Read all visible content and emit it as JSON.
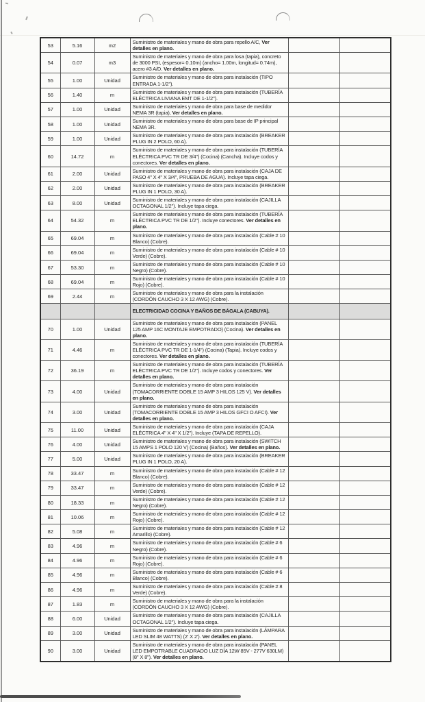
{
  "colors": {
    "page_background": "#fbfbf9",
    "table_border": "#565656",
    "section_fill": "#dcdcdb",
    "text": "#262626"
  },
  "table": {
    "rows": [
      {
        "item": "53",
        "qty": "5.16",
        "unit": "m2",
        "desc": "Suministro de materiales y mano de obra para repello A/C, ",
        "bold": "Ver detalles en plano."
      },
      {
        "item": "54",
        "qty": "0.07",
        "unit": "m3",
        "desc": "Suministro de materiales y mano de obra para losa (tapia), concreto de 3000 PSI, (espesor= 0.10m) (ancho= 1.00m, longitud= 0.74m), acero #3 A/D. ",
        "bold": "Ver detalles en plano."
      },
      {
        "item": "55",
        "qty": "1.00",
        "unit": "Unidad",
        "desc": "Suministro de materiales y mano de obra para instalación (TIPO ENTRADA 1-1/2\").",
        "bold": ""
      },
      {
        "item": "56",
        "qty": "1.40",
        "unit": "m",
        "desc": "Suministro de materiales y mano de obra para instalación (TUBERÍA ELÉCTRICA LIVIANA EMT DE 1-1/2\").",
        "bold": ""
      },
      {
        "item": "57",
        "qty": "1.00",
        "unit": "Unidad",
        "desc": "Suministro de materiales y mano de obra para base de medidor NEMA 3R (tapia), ",
        "bold": "Ver detalles en plano."
      },
      {
        "item": "58",
        "qty": "1.00",
        "unit": "Unidad",
        "desc": "Suministro de materiales y mano de obra para base de IP principal NEMA 3R.",
        "bold": ""
      },
      {
        "item": "59",
        "qty": "1.00",
        "unit": "Unidad",
        "desc": "Suministro de materiales y mano de obra para instalación (BREAKER PLUG IN 2 POLO, 60 A).",
        "bold": ""
      },
      {
        "item": "60",
        "qty": "14.72",
        "unit": "m",
        "desc": "Suministro de materiales y mano de obra para instalación (TUBERÍA ELÉCTRICA PVC TR DE 3/4\") (Cocina) (Cancha). Incluye codos y conectores. ",
        "bold": "Ver detalles en plano."
      },
      {
        "item": "61",
        "qty": "2.00",
        "unit": "Unidad",
        "desc": "Suministro de materiales y mano de obra para instalación (CAJA DE PASO 4\" X 4\" X 3/4\", PRUEBA DE AGUA). Incluye tapa ciega.",
        "bold": ""
      },
      {
        "item": "62",
        "qty": "2.00",
        "unit": "Unidad",
        "desc": "Suministro de materiales y mano de obra para instalación (BREAKER PLUG IN 1 POLO, 30 A).",
        "bold": ""
      },
      {
        "item": "63",
        "qty": "8.00",
        "unit": "Unidad",
        "desc": "Suministro de materiales y mano de obra para instalación (CAJILLA OCTAGONAL 1/2\"). Incluye tapa ciega.",
        "bold": ""
      },
      {
        "item": "64",
        "qty": "54.32",
        "unit": "m",
        "desc": "Suministro de materiales y mano de obra para instalación (TUBERÍA ELÉCTRICA PVC TR DE 1/2\"). Incluye conectores. ",
        "bold": "Ver detalles en plano."
      },
      {
        "item": "65",
        "qty": "69.04",
        "unit": "m",
        "desc": "Suministro de materiales y mano de obra para instalación (Cable # 10 Blanco) (Cobre).",
        "bold": ""
      },
      {
        "item": "66",
        "qty": "69.04",
        "unit": "m",
        "desc": "Suministro de materiales y mano de obra para instalación (Cable # 10 Verde) (Cobre).",
        "bold": ""
      },
      {
        "item": "67",
        "qty": "53.30",
        "unit": "m",
        "desc": "Suministro de materiales y mano de obra para instalación (Cable # 10 Negro) (Cobre).",
        "bold": ""
      },
      {
        "item": "68",
        "qty": "69.04",
        "unit": "m",
        "desc": "Suministro de materiales y mano de obra para instalación (Cable # 10 Rojo) (Cobre).",
        "bold": ""
      },
      {
        "item": "69",
        "qty": "2.44",
        "unit": "m",
        "desc": "Suministro de materiales y mano de obra para la instalación (CORDÓN CAUCHO 3 X 12 AWG) (Cobre).",
        "bold": ""
      },
      {
        "section": "ELECTRICIDAD COCINA Y BAÑOS DE BÁGALA (CABUYA)."
      },
      {
        "item": "70",
        "qty": "1.00",
        "unit": "Unidad",
        "desc": "Suministro de materiales y mano de obra para instalación (PANEL 125 AMP 16C MONTAJE EMPOTRADO) (Cocina). ",
        "bold": "Ver detalles en plano."
      },
      {
        "item": "71",
        "qty": "4.46",
        "unit": "m",
        "desc": "Suministro de materiales y mano de obra para instalación (TUBERÍA ELÉCTRICA PVC TR DE 1-1/4\") (Cocina) (Tapia). Incluye codos y conectores. ",
        "bold": "Ver detalles en plano."
      },
      {
        "item": "72",
        "qty": "36.19",
        "unit": "m",
        "desc": "Suministro de materiales y mano de obra para instalación (TUBERÍA ELÉCTRICA PVC TR DE 1/2\"). Incluye codos y conectores. ",
        "bold": "Ver detalles en plano."
      },
      {
        "item": "73",
        "qty": "4.00",
        "unit": "Unidad",
        "desc": "Suministro de materiales y mano de obra para instalación (TOMACORRIENTE DOBLE 15 AMP 3 HILOS 125 V). ",
        "bold": "Ver detalles en plano."
      },
      {
        "item": "74",
        "qty": "3.00",
        "unit": "Unidad",
        "desc": "Suministro de materiales y mano de obra para instalación (TOMACORRIENTE DOBLE 15 AMP 3 HILOS GFCI O AFCI). ",
        "bold": "Ver detalles en plano."
      },
      {
        "item": "75",
        "qty": "11.00",
        "unit": "Unidad",
        "desc": "Suministro de materiales y mano de obra para instalación (CAJA ELÉCTRICA 4\" X 4\" X 1/2\"). Incluye (TAPA DE REPELLO).",
        "bold": ""
      },
      {
        "item": "76",
        "qty": "4.00",
        "unit": "Unidad",
        "desc": "Suministro de materiales y mano de obra para instalación (SWITCH 15 AMPS 1 POLO 120 V) (Cocina) (Baños). ",
        "bold": "Ver detalles en plano."
      },
      {
        "item": "77",
        "qty": "5.00",
        "unit": "Unidad",
        "desc": "Suministro de materiales y mano de obra para instalación (BREAKER PLUG IN 1 POLO, 20 A).",
        "bold": ""
      },
      {
        "item": "78",
        "qty": "33.47",
        "unit": "m",
        "desc": "Suministro de materiales y mano de obra para instalación (Cable # 12 Blanco) (Cobre).",
        "bold": ""
      },
      {
        "item": "79",
        "qty": "33.47",
        "unit": "m",
        "desc": "Suministro de materiales y mano de obra para instalación (Cable # 12 Verde) (Cobre).",
        "bold": ""
      },
      {
        "item": "80",
        "qty": "18.33",
        "unit": "m",
        "desc": "Suministro de materiales y mano de obra para instalación (Cable # 12 Negro) (Cobre).",
        "bold": ""
      },
      {
        "item": "81",
        "qty": "10.06",
        "unit": "m",
        "desc": "Suministro de materiales y mano de obra para instalación (Cable # 12 Rojo) (Cobre).",
        "bold": ""
      },
      {
        "item": "82",
        "qty": "5.08",
        "unit": "m",
        "desc": "Suministro de materiales y mano de obra para instalación (Cable # 12 Amarillo) (Cobre).",
        "bold": ""
      },
      {
        "item": "83",
        "qty": "4.96",
        "unit": "m",
        "desc": "Suministro de materiales y mano de obra para instalación (Cable # 6 Negro) (Cobre).",
        "bold": ""
      },
      {
        "item": "84",
        "qty": "4.96",
        "unit": "m",
        "desc": "Suministro de materiales y mano de obra para instalación (Cable # 6 Rojo) (Cobre).",
        "bold": ""
      },
      {
        "item": "85",
        "qty": "4.96",
        "unit": "m",
        "desc": "Suministro de materiales y mano de obra para instalación (Cable # 6 Blanco) (Cobre).",
        "bold": ""
      },
      {
        "item": "86",
        "qty": "4.96",
        "unit": "m",
        "desc": "Suministro de materiales y mano de obra para instalación (Cable # 8 Verde) (Cobre).",
        "bold": ""
      },
      {
        "item": "87",
        "qty": "1.83",
        "unit": "m",
        "desc": "Suministro de materiales y mano de obra para la instalación (CORDÓN CAUCHO 3 X 12 AWG) (Cobre).",
        "bold": ""
      },
      {
        "item": "88",
        "qty": "6.00",
        "unit": "Unidad",
        "desc": "Suministro de materiales y mano de obra para instalación (CAJILLA OCTAGONAL 1/2\"). Incluye tapa ciega.",
        "bold": ""
      },
      {
        "item": "89",
        "qty": "3.00",
        "unit": "Unidad",
        "desc": "Suministro de materiales y mano de obra para instalación (LÁMPARA LED SLIM 48 WATTS) (2' X 2'). ",
        "bold": "Ver detalles en plano."
      },
      {
        "item": "90",
        "qty": "3.00",
        "unit": "Unidad",
        "desc": "Suministro de materiales y mano de obra para instalación (PANEL LED EMPOTRABLE CUADRADO LUZ DÍA 12W 85V - 277V 630LM) (8\" X 8\"). ",
        "bold": "Ver detalles en plano."
      }
    ]
  }
}
